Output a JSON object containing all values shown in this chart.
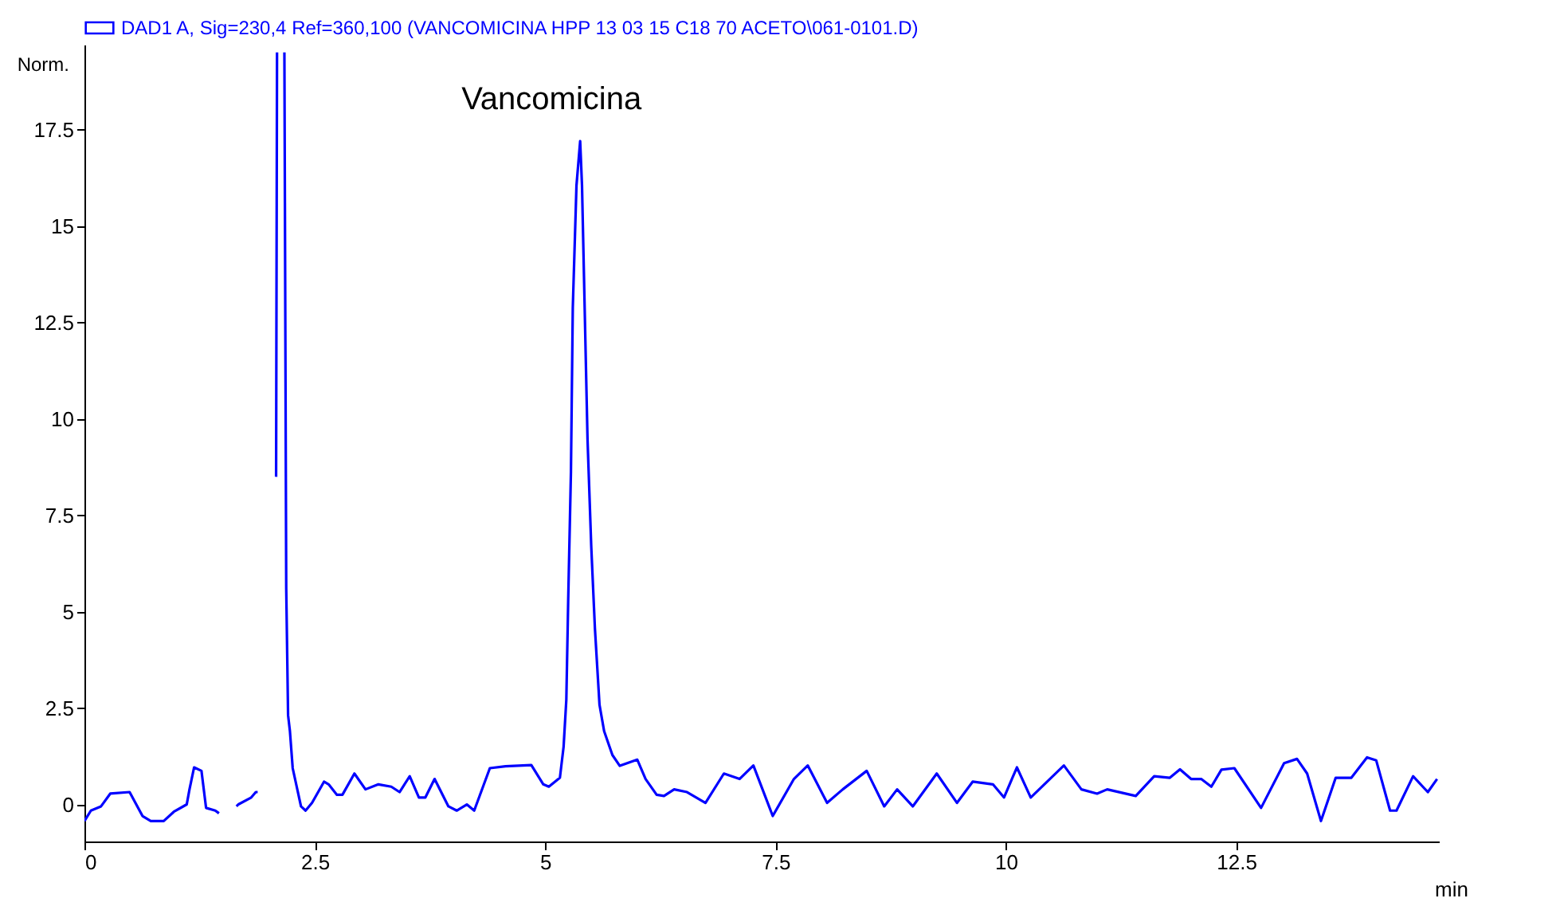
{
  "chart_data": {
    "type": "line",
    "xlabel": "min",
    "ylabel": "Norm.",
    "legend": "top",
    "line_style": "solid",
    "xlim": [
      0,
      14.7
    ],
    "ylim": [
      -0.95,
      19.7
    ],
    "xticks": [
      0,
      2.5,
      5,
      7.5,
      10,
      12.5
    ],
    "yticks": [
      0,
      2.5,
      5,
      7.5,
      10,
      12.5,
      15,
      17.5
    ],
    "annotations": [
      {
        "text": "Vancomicina",
        "x": 5.38,
        "y": 17.2
      }
    ],
    "x": [
      0,
      0.07,
      0.18,
      0.28,
      0.49,
      0.63,
      0.72,
      0.86,
      0.97,
      1.11,
      1.14,
      1.19,
      1.27,
      1.32,
      1.42,
      1.46,
      1.48,
      1.65,
      1.67,
      1.81,
      1.86,
      1.88,
      1.9,
      2.07,
      2.08,
      2.09,
      2.13,
      2.17,
      2.19,
      2.21,
      2.23,
      2.26,
      2.35,
      2.4,
      2.47,
      2.6,
      2.65,
      2.74,
      2.8,
      2.93,
      3.05,
      3.19,
      3.33,
      3.42,
      3.53,
      3.63,
      3.7,
      3.8,
      3.95,
      4.04,
      4.15,
      4.23,
      4.4,
      4.57,
      4.85,
      4.98,
      5.04,
      5.16,
      5.2,
      5.23,
      5.25,
      5.28,
      5.3,
      5.34,
      5.38,
      5.4,
      5.46,
      5.5,
      5.54,
      5.59,
      5.64,
      5.73,
      5.81,
      5.89,
      6,
      6.09,
      6.21,
      6.29,
      6.4,
      6.54,
      6.74,
      6.94,
      7.11,
      7.26,
      7.47,
      7.7,
      7.85,
      8.06,
      8.23,
      8.49,
      8.68,
      8.82,
      8.99,
      9.25,
      9.47,
      9.64,
      9.86,
      9.98,
      10.12,
      10.27,
      10.63,
      10.82,
      10.99,
      11.1,
      11.41,
      11.61,
      11.78,
      11.89,
      12.01,
      12.12,
      12.23,
      12.34,
      12.48,
      12.77,
      13.02,
      13.16,
      13.27,
      13.42,
      13.58,
      13.75,
      13.92,
      14.02,
      14.17,
      14.24,
      14.42,
      14.58,
      14.68
    ],
    "series": [
      {
        "name": "DAD1 A, Sig=230,4 Ref=360,100 (VANCOMICINA HPP 13 03 15 C18 70 ACETO\\061-0101.D)",
        "color": "#0000ff",
        "values": [
          -0.42,
          -0.15,
          -0.04,
          0.29,
          0.33,
          -0.29,
          -0.42,
          -0.42,
          -0.18,
          0.01,
          0.4,
          0.97,
          0.88,
          -0.08,
          -0.15,
          -0.22,
          null,
          -0.04,
          0.01,
          0.19,
          0.33,
          0.33,
          null,
          null,
          8.5,
          19.5,
          null,
          19.5,
          5.6,
          2.32,
          1.91,
          0.95,
          -0.04,
          -0.15,
          0.05,
          0.6,
          0.53,
          0.26,
          0.26,
          0.81,
          0.4,
          0.53,
          0.47,
          0.33,
          0.74,
          0.19,
          0.19,
          0.67,
          -0.04,
          -0.15,
          0.01,
          -0.15,
          0.95,
          1,
          1.03,
          0.53,
          0.47,
          0.7,
          1.5,
          2.73,
          5.27,
          8.64,
          12.88,
          16.05,
          17.2,
          16.05,
          9.47,
          6.71,
          4.58,
          2.59,
          1.91,
          1.29,
          1.01,
          1.08,
          1.17,
          0.67,
          0.26,
          0.23,
          0.4,
          0.33,
          0.05,
          0.81,
          0.67,
          1.02,
          -0.29,
          0.67,
          1.02,
          0.05,
          0.4,
          0.88,
          -0.04,
          0.4,
          -0.04,
          0.81,
          0.05,
          0.6,
          0.53,
          0.19,
          0.97,
          0.19,
          1.02,
          0.4,
          0.29,
          0.4,
          0.23,
          0.74,
          0.7,
          0.92,
          0.67,
          0.67,
          0.47,
          0.91,
          0.95,
          -0.08,
          1.08,
          1.19,
          0.81,
          -0.42,
          0.7,
          0.7,
          1.23,
          1.15,
          -0.15,
          -0.15,
          0.74,
          0.33,
          0.67
        ]
      }
    ]
  }
}
